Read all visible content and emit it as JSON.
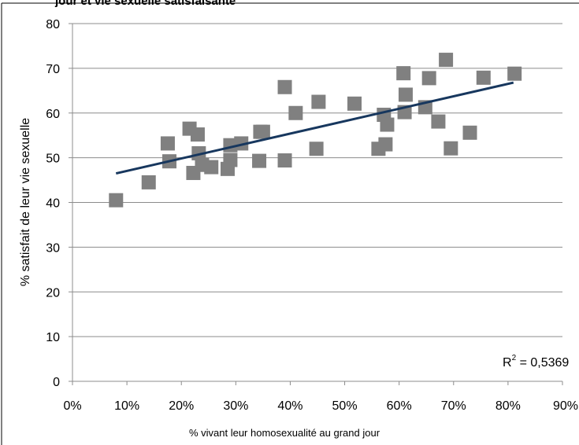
{
  "chart_data": {
    "type": "scatter",
    "title": "jour et vie sexuelle satisfaisante",
    "xlabel": "% vivant leur homosexualité au grand jour",
    "ylabel": "% satisfait de leur vie sexuelle",
    "xlim": [
      0,
      0.9
    ],
    "ylim": [
      0,
      80
    ],
    "x_ticks": [
      "0%",
      "10%",
      "20%",
      "30%",
      "40%",
      "50%",
      "60%",
      "70%",
      "80%",
      "90%"
    ],
    "x_tick_values": [
      0,
      0.1,
      0.2,
      0.3,
      0.4,
      0.5,
      0.6,
      0.7,
      0.8,
      0.9
    ],
    "y_ticks": [
      "0",
      "10",
      "20",
      "30",
      "40",
      "50",
      "60",
      "70",
      "80"
    ],
    "y_tick_values": [
      0,
      10,
      20,
      30,
      40,
      50,
      60,
      70,
      80
    ],
    "grid": "horizontal",
    "marker_color": "#808080",
    "trendline_color": "#17375E",
    "trendline": {
      "x": [
        0.08,
        0.81
      ],
      "y": [
        46.5,
        66.8
      ]
    },
    "r2_label": "R",
    "r2_sup": "2",
    "r2_value": " = 0,5369",
    "points": [
      {
        "x": 0.08,
        "y": 40.5
      },
      {
        "x": 0.14,
        "y": 44.5
      },
      {
        "x": 0.175,
        "y": 53.2
      },
      {
        "x": 0.178,
        "y": 49.2
      },
      {
        "x": 0.215,
        "y": 56.5
      },
      {
        "x": 0.222,
        "y": 46.6
      },
      {
        "x": 0.23,
        "y": 55.2
      },
      {
        "x": 0.232,
        "y": 51.0
      },
      {
        "x": 0.238,
        "y": 48.4
      },
      {
        "x": 0.255,
        "y": 47.9
      },
      {
        "x": 0.285,
        "y": 47.5
      },
      {
        "x": 0.29,
        "y": 49.5
      },
      {
        "x": 0.29,
        "y": 52.8
      },
      {
        "x": 0.31,
        "y": 53.2
      },
      {
        "x": 0.343,
        "y": 49.3
      },
      {
        "x": 0.345,
        "y": 55.8
      },
      {
        "x": 0.35,
        "y": 55.8
      },
      {
        "x": 0.39,
        "y": 65.8
      },
      {
        "x": 0.39,
        "y": 49.4
      },
      {
        "x": 0.41,
        "y": 60.0
      },
      {
        "x": 0.448,
        "y": 52.0
      },
      {
        "x": 0.452,
        "y": 62.5
      },
      {
        "x": 0.518,
        "y": 62.1
      },
      {
        "x": 0.562,
        "y": 52.0
      },
      {
        "x": 0.572,
        "y": 59.6
      },
      {
        "x": 0.575,
        "y": 53.0
      },
      {
        "x": 0.578,
        "y": 57.4
      },
      {
        "x": 0.608,
        "y": 68.9
      },
      {
        "x": 0.61,
        "y": 60.2
      },
      {
        "x": 0.612,
        "y": 64.1
      },
      {
        "x": 0.648,
        "y": 61.3
      },
      {
        "x": 0.655,
        "y": 67.8
      },
      {
        "x": 0.672,
        "y": 58.1
      },
      {
        "x": 0.686,
        "y": 71.9
      },
      {
        "x": 0.695,
        "y": 52.1
      },
      {
        "x": 0.73,
        "y": 55.6
      },
      {
        "x": 0.755,
        "y": 67.9
      },
      {
        "x": 0.812,
        "y": 68.8
      }
    ]
  }
}
